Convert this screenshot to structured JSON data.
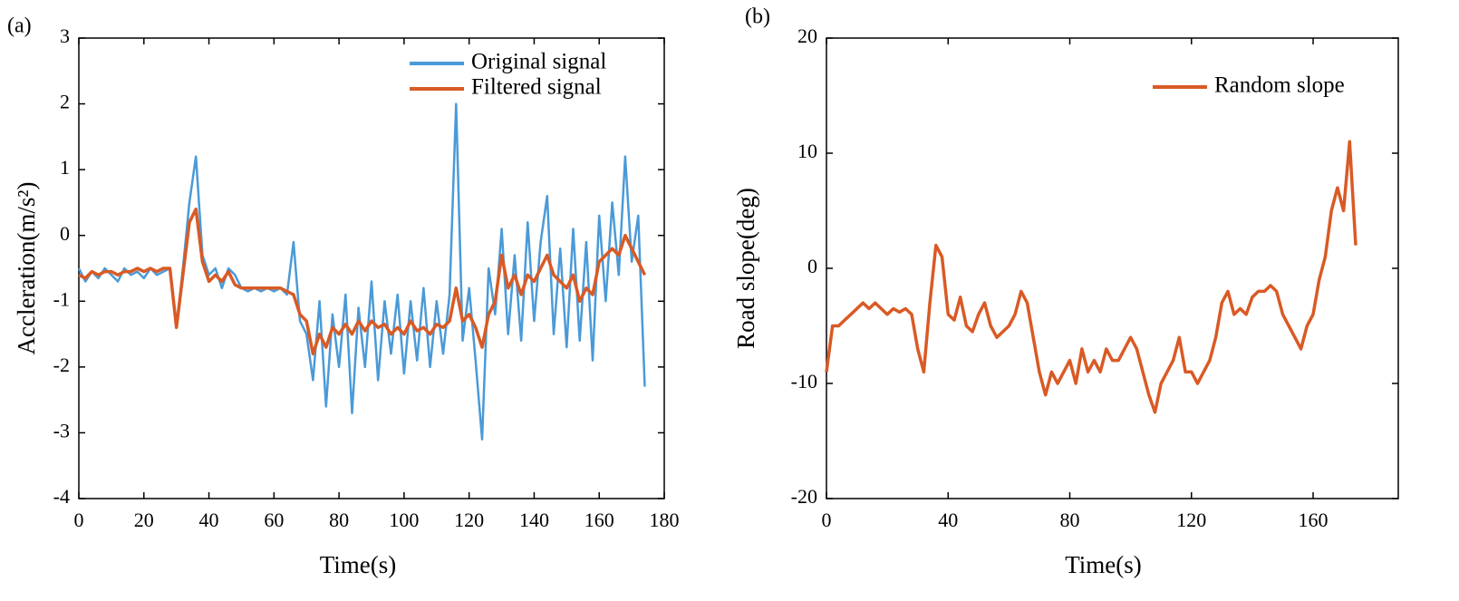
{
  "chart_data": [
    {
      "type": "line",
      "panel_label": "(a)",
      "xlabel": "Time(s)",
      "ylabel": "Accleration(m/s²)",
      "x": [
        0,
        2,
        4,
        6,
        8,
        10,
        12,
        14,
        16,
        18,
        20,
        22,
        24,
        26,
        28,
        30,
        32,
        34,
        36,
        38,
        40,
        42,
        44,
        46,
        48,
        50,
        52,
        54,
        56,
        58,
        60,
        62,
        64,
        66,
        68,
        70,
        72,
        74,
        76,
        78,
        80,
        82,
        84,
        86,
        88,
        90,
        92,
        94,
        96,
        98,
        100,
        102,
        104,
        106,
        108,
        110,
        112,
        114,
        116,
        118,
        120,
        122,
        124,
        126,
        128,
        130,
        132,
        134,
        136,
        138,
        140,
        142,
        144,
        146,
        148,
        150,
        152,
        154,
        156,
        158,
        160,
        162,
        164,
        166,
        168,
        170,
        172,
        174
      ],
      "series": [
        {
          "name": "Original signal",
          "color": "#4a9ad8",
          "values": [
            -0.5,
            -0.7,
            -0.55,
            -0.65,
            -0.5,
            -0.6,
            -0.7,
            -0.5,
            -0.6,
            -0.55,
            -0.65,
            -0.5,
            -0.6,
            -0.55,
            -0.5,
            -1.4,
            -0.5,
            0.5,
            1.2,
            -0.3,
            -0.6,
            -0.5,
            -0.8,
            -0.5,
            -0.6,
            -0.8,
            -0.85,
            -0.8,
            -0.85,
            -0.8,
            -0.85,
            -0.8,
            -0.9,
            -0.1,
            -1.3,
            -1.5,
            -2.2,
            -1.0,
            -2.6,
            -1.2,
            -2.0,
            -0.9,
            -2.7,
            -1.1,
            -2.0,
            -0.7,
            -2.2,
            -1.0,
            -1.8,
            -0.9,
            -2.1,
            -1.0,
            -1.9,
            -0.8,
            -2.0,
            -1.0,
            -1.8,
            -0.9,
            2.0,
            -1.6,
            -0.8,
            -1.9,
            -3.1,
            -0.5,
            -1.2,
            0.1,
            -1.5,
            -0.3,
            -1.6,
            0.2,
            -1.3,
            -0.1,
            0.6,
            -1.5,
            -0.2,
            -1.7,
            0.1,
            -1.6,
            -0.1,
            -1.9,
            0.3,
            -1.0,
            0.5,
            -0.6,
            1.2,
            -0.4,
            0.3,
            -2.3
          ]
        },
        {
          "name": "Filtered signal",
          "color": "#d95a25",
          "values": [
            -0.6,
            -0.65,
            -0.55,
            -0.6,
            -0.55,
            -0.55,
            -0.6,
            -0.55,
            -0.55,
            -0.5,
            -0.55,
            -0.5,
            -0.55,
            -0.5,
            -0.5,
            -1.4,
            -0.6,
            0.2,
            0.4,
            -0.4,
            -0.7,
            -0.6,
            -0.7,
            -0.55,
            -0.75,
            -0.8,
            -0.8,
            -0.8,
            -0.8,
            -0.8,
            -0.8,
            -0.8,
            -0.85,
            -0.9,
            -1.2,
            -1.3,
            -1.8,
            -1.5,
            -1.7,
            -1.4,
            -1.5,
            -1.35,
            -1.5,
            -1.3,
            -1.45,
            -1.3,
            -1.4,
            -1.35,
            -1.5,
            -1.4,
            -1.5,
            -1.3,
            -1.45,
            -1.4,
            -1.5,
            -1.35,
            -1.4,
            -1.3,
            -0.8,
            -1.3,
            -1.2,
            -1.4,
            -1.7,
            -1.2,
            -1.0,
            -0.3,
            -0.8,
            -0.6,
            -0.9,
            -0.6,
            -0.7,
            -0.5,
            -0.3,
            -0.6,
            -0.7,
            -0.8,
            -0.6,
            -1.0,
            -0.8,
            -0.9,
            -0.4,
            -0.3,
            -0.2,
            -0.3,
            0,
            -0.2,
            -0.4,
            -0.6
          ]
        }
      ],
      "xlim": [
        0,
        180
      ],
      "xticks": [
        0,
        20,
        40,
        60,
        80,
        100,
        120,
        140,
        160,
        180
      ],
      "ylim": [
        -4,
        3
      ],
      "yticks": [
        3,
        2,
        1,
        0,
        -1,
        -2,
        -3,
        -4
      ],
      "legend": "upper right"
    },
    {
      "type": "line",
      "panel_label": "(b)",
      "xlabel": "Time(s)",
      "ylabel": "Road slope(deg)",
      "x": [
        0,
        2,
        4,
        6,
        8,
        10,
        12,
        14,
        16,
        18,
        20,
        22,
        24,
        26,
        28,
        30,
        32,
        34,
        36,
        38,
        40,
        42,
        44,
        46,
        48,
        50,
        52,
        54,
        56,
        58,
        60,
        62,
        64,
        66,
        68,
        70,
        72,
        74,
        76,
        78,
        80,
        82,
        84,
        86,
        88,
        90,
        92,
        94,
        96,
        98,
        100,
        102,
        104,
        106,
        108,
        110,
        112,
        114,
        116,
        118,
        120,
        122,
        124,
        126,
        128,
        130,
        132,
        134,
        136,
        138,
        140,
        142,
        144,
        146,
        148,
        150,
        152,
        154,
        156,
        158,
        160,
        162,
        164,
        166,
        168,
        170,
        172,
        174
      ],
      "series": [
        {
          "name": "Random slope",
          "color": "#d95a25",
          "values": [
            -9,
            -5,
            -5,
            -4.5,
            -4,
            -3.5,
            -3,
            -3.5,
            -3,
            -3.5,
            -4,
            -3.5,
            -3.8,
            -3.5,
            -4,
            -7,
            -9,
            -3,
            2,
            1,
            -4,
            -4.5,
            -2.5,
            -5,
            -5.5,
            -4,
            -3,
            -5,
            -6,
            -5.5,
            -5,
            -4,
            -2,
            -3,
            -6,
            -9,
            -11,
            -9,
            -10,
            -9,
            -8,
            -10,
            -7,
            -9,
            -8,
            -9,
            -7,
            -8,
            -8,
            -7,
            -6,
            -7,
            -9,
            -11,
            -12.5,
            -10,
            -9,
            -8,
            -6,
            -9,
            -9,
            -10,
            -9,
            -8,
            -6,
            -3,
            -2,
            -4,
            -3.5,
            -4,
            -2.5,
            -2,
            -2,
            -1.5,
            -2,
            -4,
            -5,
            -6,
            -7,
            -5,
            -4,
            -1,
            1,
            5,
            7,
            5,
            11,
            2
          ]
        }
      ],
      "xlim": [
        0,
        188
      ],
      "xticks": [
        0,
        40,
        80,
        120,
        160
      ],
      "ylim": [
        -20,
        20
      ],
      "yticks": [
        20,
        10,
        0,
        -10,
        -20
      ],
      "legend": "upper right"
    }
  ]
}
